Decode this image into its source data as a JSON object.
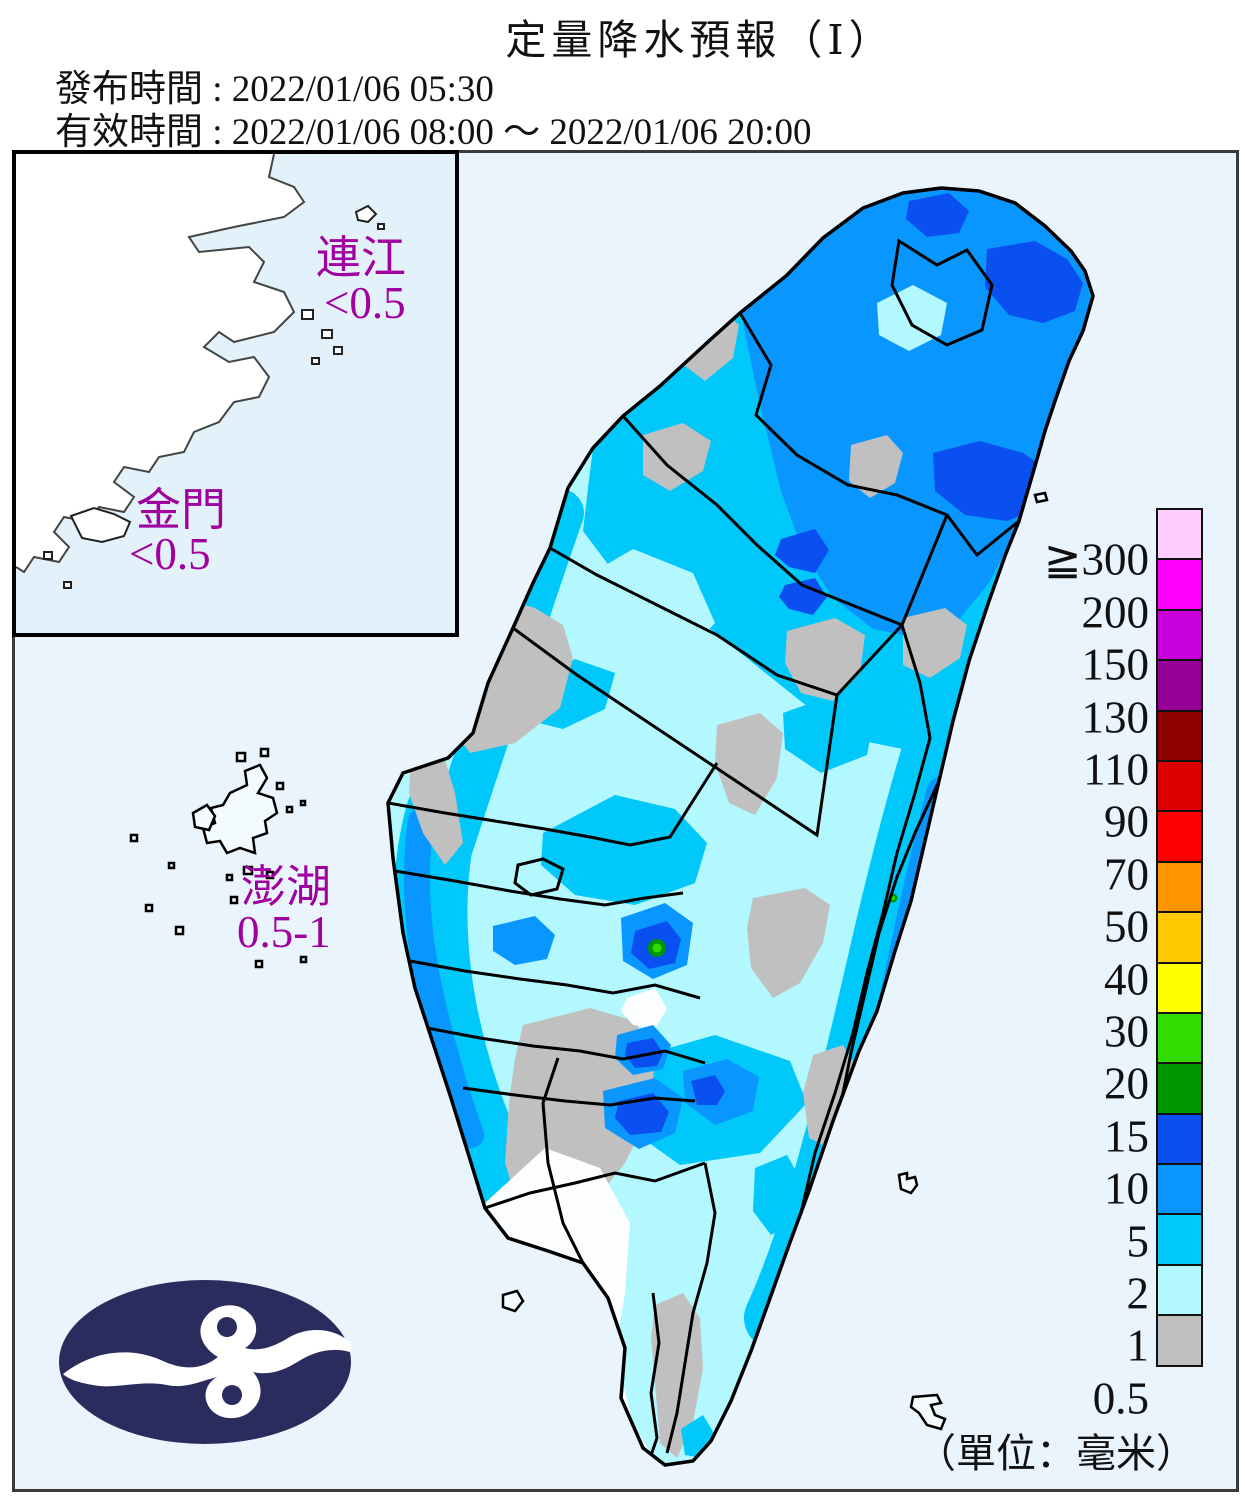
{
  "header": {
    "title": "定量降水預報（Ⅰ）",
    "issued": "發布時間 : 2022/01/06 05:30",
    "valid": "有效時間 : 2022/01/06 08:00 ～ 2022/01/06 20:00"
  },
  "regions": {
    "lienchiang": {
      "name": "連江",
      "value": "<0.5"
    },
    "kinmen": {
      "name": "金門",
      "value": "<0.5"
    },
    "penghu": {
      "name": "澎湖",
      "value": "0.5-1"
    }
  },
  "legend": {
    "unit": "（單位：毫米）",
    "levels": [
      {
        "label": "≧300",
        "color": "#FFCCFF"
      },
      {
        "label": "200",
        "color": "#FF00FF"
      },
      {
        "label": "150",
        "color": "#C800DC"
      },
      {
        "label": "130",
        "color": "#960096"
      },
      {
        "label": "110",
        "color": "#8C0000"
      },
      {
        "label": "90",
        "color": "#DC0000"
      },
      {
        "label": "70",
        "color": "#FF0000"
      },
      {
        "label": "50",
        "color": "#FF9600"
      },
      {
        "label": "40",
        "color": "#FFC800"
      },
      {
        "label": "30",
        "color": "#FFFF00"
      },
      {
        "label": "20",
        "color": "#32DC00"
      },
      {
        "label": "15",
        "color": "#009600"
      },
      {
        "label": "10",
        "color": "#0A50F0"
      },
      {
        "label": "5",
        "color": "#0A96FF"
      },
      {
        "label": "2",
        "color": "#00C8FA"
      },
      {
        "label": "1",
        "color": "#B4F8FF"
      },
      {
        "label": "0.5",
        "color": "#C0C0C0"
      }
    ]
  },
  "colors": {
    "sea": "#EAF4FC",
    "inset_sea": "#E3F1FA",
    "land_below_threshold": "#FDFEFF",
    "region_label": "#A000A0",
    "logo_navy": "#2B2C5E",
    "frame_border": "#3A3A3A"
  },
  "chart_data": {
    "type": "heatmap",
    "title": "定量降水預報（Ⅰ）",
    "issued_time": "2022/01/06 05:30",
    "valid_from": "2022/01/06 08:00",
    "valid_to": "2022/01/06 20:00",
    "unit": "毫米",
    "scale_levels_mm": [
      0.5,
      1,
      2,
      5,
      10,
      15,
      20,
      30,
      40,
      50,
      70,
      90,
      110,
      130,
      150,
      200,
      300
    ],
    "scale_colors_low_to_high": [
      "#C0C0C0",
      "#B4F8FF",
      "#00C8FA",
      "#0A96FF",
      "#0A50F0",
      "#009600",
      "#32DC00",
      "#FFFF00",
      "#FFC800",
      "#FF9600",
      "#FF0000",
      "#DC0000",
      "#8C0000",
      "#960096",
      "#C800DC",
      "#FF00FF",
      "#FFCCFF"
    ],
    "legend_top_label_prefix": "≧",
    "region_annotations": [
      {
        "region": "連江",
        "forecast_mm": "<0.5"
      },
      {
        "region": "金門",
        "forecast_mm": "<0.5"
      },
      {
        "region": "澎湖",
        "forecast_mm": "0.5-1"
      }
    ]
  }
}
